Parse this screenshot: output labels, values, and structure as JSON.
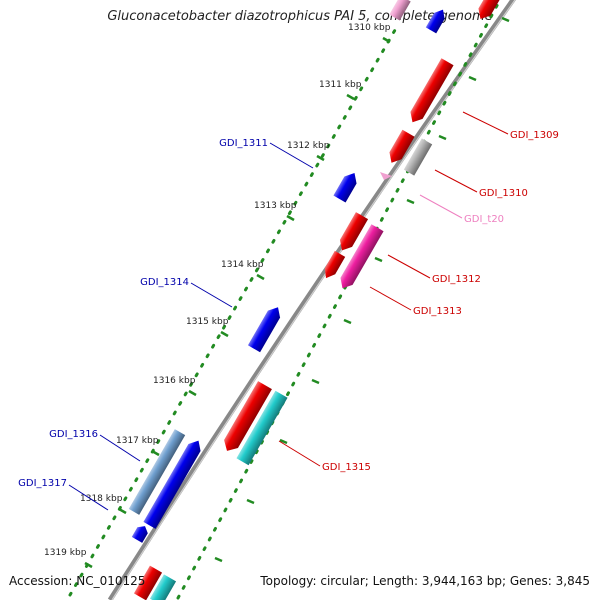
{
  "title": "Gluconacetobacter diazotrophicus PAI 5, complete genome",
  "accession_text": "Accession: NC_010125",
  "summary_text": "Topology: circular; Length: 3,944,163 bp; Genes: 3,845",
  "colors": {
    "backbone": "#888888",
    "forward_tick": "#228b22",
    "reverse_tick": "#228b22",
    "minor_dot": "#228b22",
    "blue": "#0000ee",
    "red": "#ee0000",
    "magenta": "#ee1ea0",
    "cyan": "#22cccc",
    "grey": "#b4b4b4",
    "pink": "#f0a0d0",
    "steel": "#6f9fcf",
    "label_blue": "#0000aa",
    "label_red": "#cc0000",
    "label_pink": "#ee80c0"
  },
  "scale_labels": [
    "1310 kbp",
    "1311 kbp",
    "1312 kbp",
    "1313 kbp",
    "1314 kbp",
    "1315 kbp",
    "1316 kbp",
    "1317 kbp",
    "1318 kbp",
    "1319 kbp"
  ],
  "gene_labels": [
    {
      "text": "GDI_1309",
      "color": "label_red"
    },
    {
      "text": "GDI_1310",
      "color": "label_red"
    },
    {
      "text": "GDI_t20",
      "color": "label_pink"
    },
    {
      "text": "GDI_1311",
      "color": "label_blue"
    },
    {
      "text": "GDI_1312",
      "color": "label_red"
    },
    {
      "text": "GDI_1313",
      "color": "label_red"
    },
    {
      "text": "GDI_1314",
      "color": "label_blue"
    },
    {
      "text": "GDI_1315",
      "color": "label_red"
    },
    {
      "text": "GDI_1316",
      "color": "label_blue"
    },
    {
      "text": "GDI_1317",
      "color": "label_blue"
    }
  ]
}
